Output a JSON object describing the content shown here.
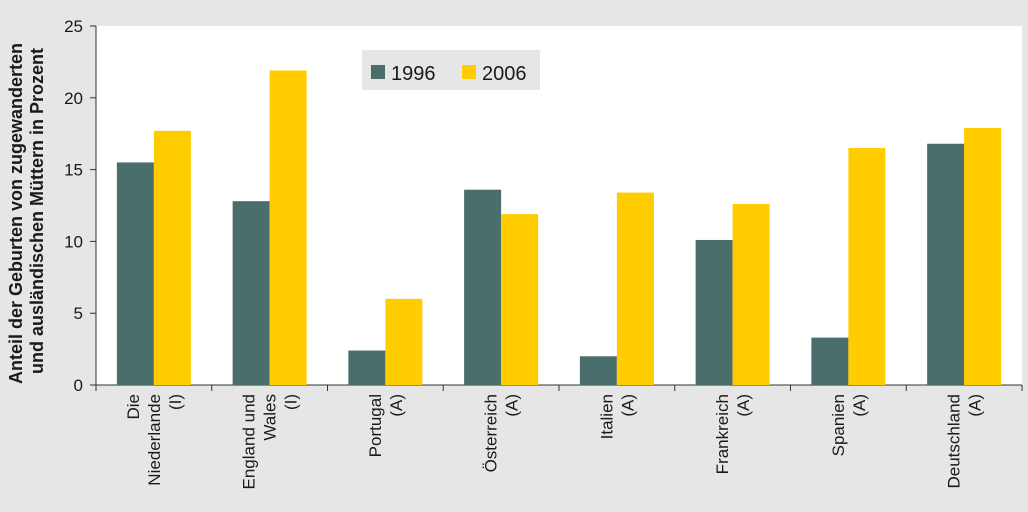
{
  "chart_data": {
    "type": "bar",
    "categories": [
      [
        "Die",
        "Niederlande",
        "(I)"
      ],
      [
        "England und",
        "Wales",
        "(I)"
      ],
      [
        "Portugal",
        "(A)"
      ],
      [
        "Österreich",
        "(A)"
      ],
      [
        "Italien",
        "(A)"
      ],
      [
        "Frankreich",
        "(A)"
      ],
      [
        "Spanien",
        "(A)"
      ],
      [
        "Deutschland",
        "(A)"
      ]
    ],
    "series": [
      {
        "name": "1996",
        "color": "#4a6e6c",
        "values": [
          15.5,
          12.8,
          2.4,
          13.6,
          2.0,
          10.1,
          3.3,
          16.8
        ]
      },
      {
        "name": "2006",
        "color": "#ffcc00",
        "values": [
          17.7,
          21.9,
          6.0,
          11.9,
          13.4,
          12.6,
          16.5,
          17.9
        ]
      }
    ],
    "ylabel": [
      "Anteil der Geburten von zugewanderten",
      "und ausländischen Müttern in Prozent"
    ],
    "ylim": [
      0,
      25
    ],
    "yticks": [
      0,
      5,
      10,
      15,
      20,
      25
    ],
    "legend": "top-center",
    "grid": false,
    "background": "#ffffff"
  }
}
